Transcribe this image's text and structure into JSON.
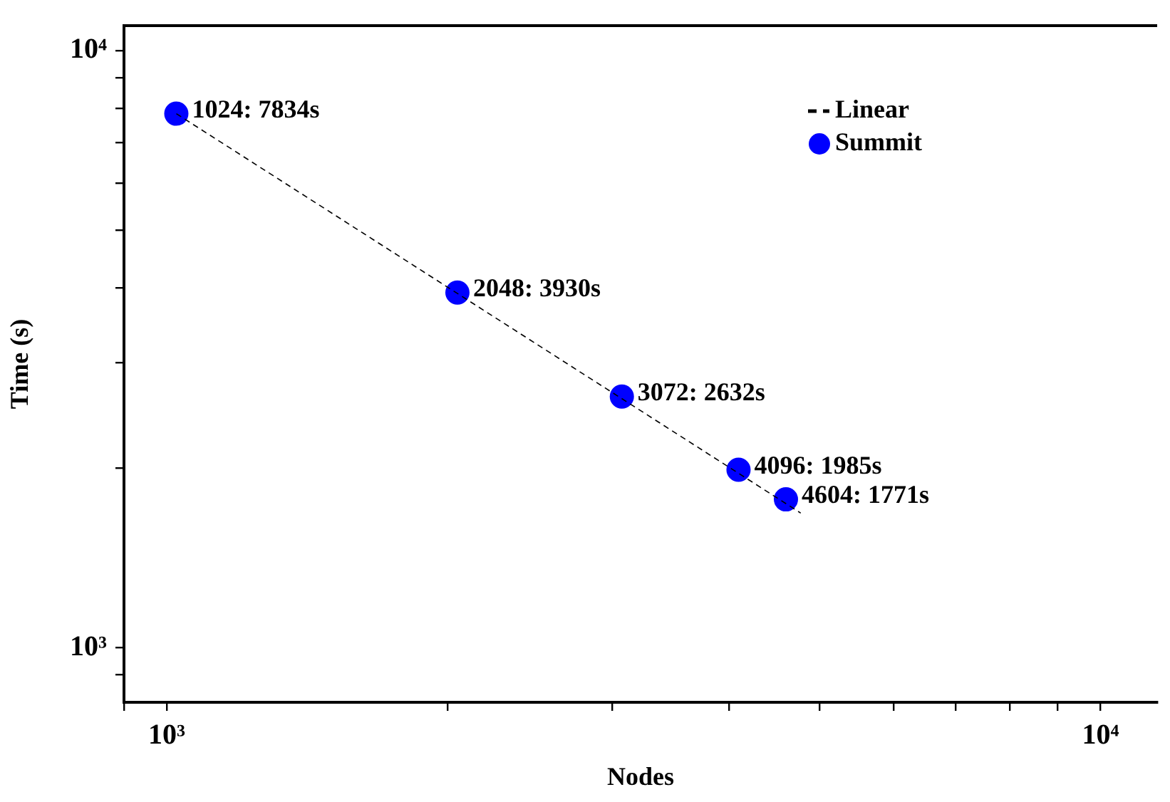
{
  "chart_data": {
    "type": "scatter",
    "xlabel": "Nodes",
    "ylabel": "Time (s)",
    "log": "xy",
    "grid": false,
    "legend": "top right",
    "xlim": [
      900,
      11500
    ],
    "ylim": [
      810,
      11000
    ],
    "xticks": [
      {
        "value": 900,
        "label": null
      },
      {
        "value": 1000,
        "label": "10³"
      },
      {
        "value": 2000,
        "label": null
      },
      {
        "value": 3000,
        "label": null
      },
      {
        "value": 4000,
        "label": null
      },
      {
        "value": 5000,
        "label": null
      },
      {
        "value": 6000,
        "label": null
      },
      {
        "value": 7000,
        "label": null
      },
      {
        "value": 8000,
        "label": null
      },
      {
        "value": 9000,
        "label": null
      },
      {
        "value": 10000,
        "label": "10⁴"
      }
    ],
    "yticks": [
      {
        "value": 900,
        "label": null
      },
      {
        "value": 1000,
        "label": "10³"
      },
      {
        "value": 2000,
        "label": null
      },
      {
        "value": 3000,
        "label": null
      },
      {
        "value": 4000,
        "label": null
      },
      {
        "value": 5000,
        "label": null
      },
      {
        "value": 6000,
        "label": null
      },
      {
        "value": 7000,
        "label": null
      },
      {
        "value": 8000,
        "label": null
      },
      {
        "value": 9000,
        "label": null
      },
      {
        "value": 10000,
        "label": "10⁴"
      }
    ],
    "series": [
      {
        "type": "line",
        "name": "Linear",
        "color": "#000000",
        "marker": "none",
        "line_style": "dashed",
        "x": [
          1024,
          4775
        ],
        "values": [
          7834,
          1680
        ]
      },
      {
        "name": "Summit",
        "color": "#0000ff",
        "marker": "circle",
        "x": [
          1024,
          2048,
          3072,
          4096,
          4604
        ],
        "values": [
          7834,
          3930,
          2632,
          1985,
          1771
        ]
      }
    ],
    "annotations": [
      {
        "text": "1024: 7834s",
        "x": 1024,
        "y": 7834
      },
      {
        "text": "2048: 3930s",
        "x": 2048,
        "y": 3930
      },
      {
        "text": "3072: 2632s",
        "x": 3072,
        "y": 2632
      },
      {
        "text": "4096: 1985s",
        "x": 4096,
        "y": 1985
      },
      {
        "text": "4604: 1771s",
        "x": 4604,
        "y": 1771
      }
    ]
  }
}
